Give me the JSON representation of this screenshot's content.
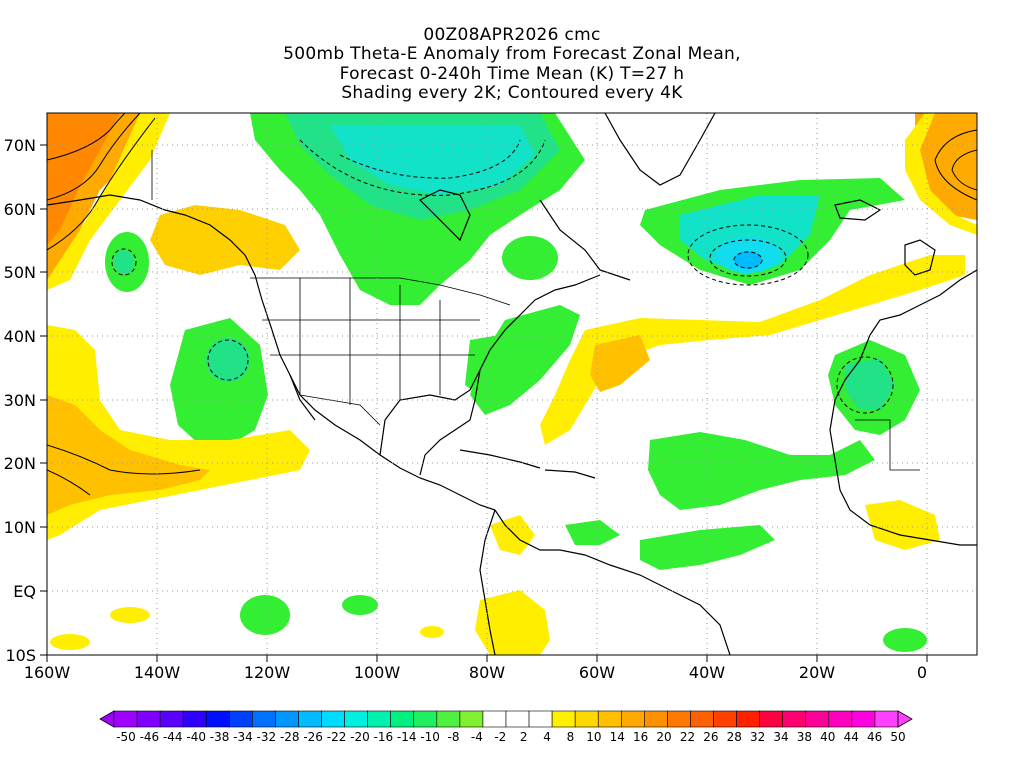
{
  "header": {
    "line1": "00Z08APR2026 cmc",
    "line2": "500mb Theta-E Anomaly from Forecast Zonal Mean,",
    "line3": "Forecast 0-240h Time Mean (K) T=27 h",
    "line4": "Shading every 2K; Contoured every 4K"
  },
  "axes": {
    "lat_labels": [
      "70N",
      "60N",
      "50N",
      "40N",
      "30N",
      "20N",
      "10N",
      "EQ",
      "10S"
    ],
    "lon_labels": [
      "160W",
      "140W",
      "120W",
      "100W",
      "80W",
      "60W",
      "40W",
      "20W",
      "0"
    ]
  },
  "colorbar": {
    "labels": [
      "-50",
      "-46",
      "-44",
      "-40",
      "-38",
      "-34",
      "-32",
      "-28",
      "-26",
      "-22",
      "-20",
      "-16",
      "-14",
      "-10",
      "-8",
      "-4",
      "-2",
      "2",
      "4",
      "8",
      "10",
      "14",
      "16",
      "20",
      "22",
      "26",
      "28",
      "32",
      "34",
      "38",
      "40",
      "44",
      "46",
      "50"
    ],
    "colors": [
      "#a000ff",
      "#8000ff",
      "#5a00ff",
      "#3000ff",
      "#0010ff",
      "#0040ff",
      "#0070ff",
      "#0098ff",
      "#00bcff",
      "#00dcff",
      "#00f0e0",
      "#00f0b0",
      "#00f080",
      "#20f060",
      "#50f040",
      "#80f030",
      "#ffffff",
      "#ffffff",
      "#ffffff",
      "#fff000",
      "#ffd800",
      "#ffc000",
      "#ffa800",
      "#ff9000",
      "#ff7800",
      "#ff6000",
      "#ff4000",
      "#ff2000",
      "#ff0040",
      "#ff0070",
      "#ff0098",
      "#ff00c0",
      "#ff00e0",
      "#ff40ff"
    ]
  },
  "colors": {
    "green": "#33ee33",
    "green_mid": "#22e288",
    "teal": "#11e2c8",
    "cyan": "#11ddee",
    "yellow": "#ffee00",
    "yellow_dark": "#ffd000",
    "orange": "#ffaa00",
    "orange_dark": "#ff8800"
  }
}
